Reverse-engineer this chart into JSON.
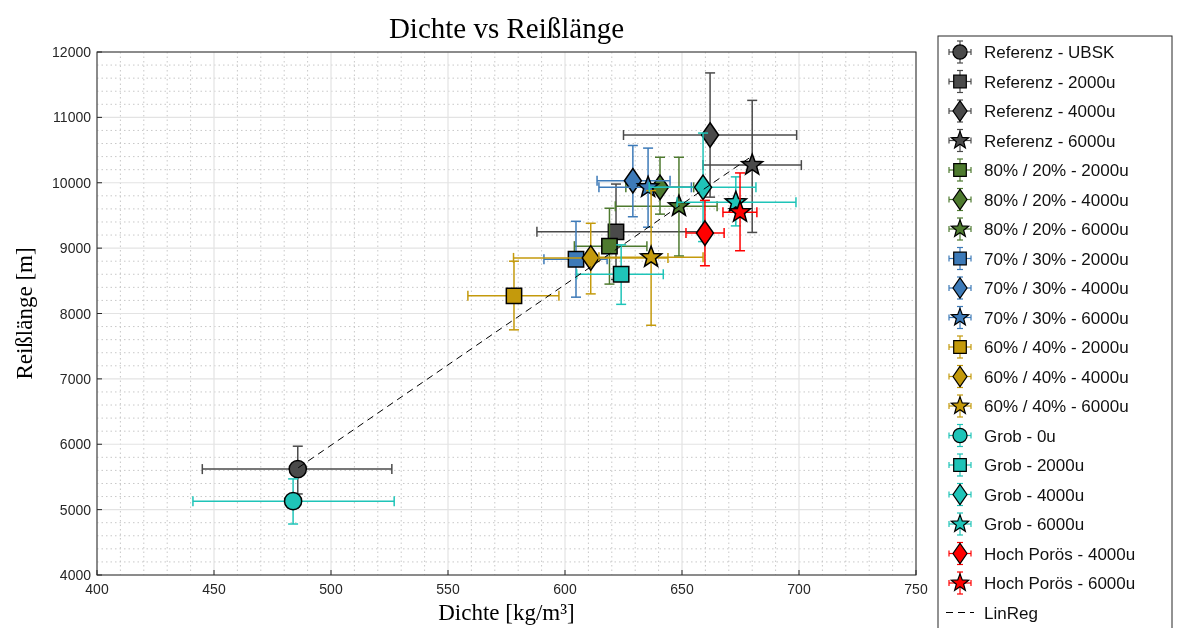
{
  "chart_data": {
    "type": "scatter",
    "title": "Dichte vs Reißlänge",
    "xlabel": "Dichte [kg/m³]",
    "ylabel": "Reißlänge [m]",
    "xlim": [
      400,
      750
    ],
    "xticks": [
      400,
      450,
      500,
      550,
      600,
      650,
      700,
      750
    ],
    "ylim": [
      4000,
      12000
    ],
    "yticks": [
      4000,
      5000,
      6000,
      7000,
      8000,
      9000,
      10000,
      11000,
      12000
    ],
    "grid": true,
    "legend": "right",
    "series": [
      {
        "name": "Referenz - UBSK",
        "color": "#4a4a4a",
        "marker": "circle",
        "x": [
          485.8
        ],
        "values": [
          5620
        ],
        "errors": [
          [
            5240,
            5970
          ]
        ],
        "xerrors": [
          [
            445,
            526
          ]
        ]
      },
      {
        "name": "Referenz - 2000u",
        "color": "#4a4a4a",
        "marker": "square",
        "x": [
          621.8
        ],
        "values": [
          9250
        ],
        "errors": [
          [
            8520,
            9980
          ]
        ],
        "xerrors": [
          [
            588,
            658
          ]
        ]
      },
      {
        "name": "Referenz - 4000u",
        "color": "#4a4a4a",
        "marker": "diamond",
        "x": [
          662
        ],
        "values": [
          10730
        ],
        "errors": [
          [
            9780,
            11680
          ]
        ],
        "xerrors": [
          [
            625,
            699
          ]
        ]
      },
      {
        "name": "Referenz - 6000u",
        "color": "#4a4a4a",
        "marker": "star",
        "x": [
          680
        ],
        "values": [
          10270
        ],
        "errors": [
          [
            9240,
            11260
          ]
        ],
        "xerrors": [
          [
            659,
            701
          ]
        ]
      },
      {
        "name": "80% / 20% - 2000u",
        "color": "#4e7a2f",
        "marker": "square",
        "x": [
          619
        ],
        "values": [
          9030
        ],
        "errors": [
          [
            8450,
            9610
          ]
        ],
        "xerrors": [
          [
            604,
            635
          ]
        ]
      },
      {
        "name": "80% / 20% - 4000u",
        "color": "#4e7a2f",
        "marker": "diamond",
        "x": [
          640.6
        ],
        "values": [
          9930
        ],
        "errors": [
          [
            9520,
            10390
          ]
        ],
        "xerrors": [
          [
            626,
            655
          ]
        ]
      },
      {
        "name": "80% / 20% - 6000u",
        "color": "#4e7a2f",
        "marker": "star",
        "x": [
          648.7
        ],
        "values": [
          9640
        ],
        "errors": [
          [
            8880,
            10390
          ]
        ],
        "xerrors": [
          [
            621.5,
            665
          ]
        ]
      },
      {
        "name": "70% / 30% - 2000u",
        "color": "#3d7ab8",
        "marker": "square",
        "x": [
          604.7
        ],
        "values": [
          8830
        ],
        "errors": [
          [
            8250,
            9410
          ]
        ],
        "xerrors": [
          [
            591,
            618
          ]
        ]
      },
      {
        "name": "70% / 30% - 4000u",
        "color": "#3d7ab8",
        "marker": "diamond",
        "x": [
          629
        ],
        "values": [
          10030
        ],
        "errors": [
          [
            9480,
            10570
          ]
        ],
        "xerrors": [
          [
            613.7,
            644.9
          ]
        ]
      },
      {
        "name": "70% / 30% - 6000u",
        "color": "#3d7ab8",
        "marker": "star",
        "x": [
          635.5
        ],
        "values": [
          9930
        ],
        "errors": [
          [
            9320,
            10530
          ]
        ],
        "xerrors": [
          [
            614.5,
            654
          ]
        ]
      },
      {
        "name": "60% / 40% - 2000u",
        "color": "#c49a0c",
        "marker": "square",
        "x": [
          578.2
        ],
        "values": [
          8270
        ],
        "errors": [
          [
            7750,
            8800
          ]
        ],
        "xerrors": [
          [
            558.5,
            597.4
          ]
        ]
      },
      {
        "name": "60% / 40% - 4000u",
        "color": "#c49a0c",
        "marker": "diamond",
        "x": [
          611
        ],
        "values": [
          8850
        ],
        "errors": [
          [
            8300,
            9380
          ]
        ],
        "xerrors": [
          [
            578,
            644
          ]
        ]
      },
      {
        "name": "60% / 40% - 6000u",
        "color": "#c49a0c",
        "marker": "star",
        "x": [
          636.8
        ],
        "values": [
          8860
        ],
        "errors": [
          [
            7820,
            9880
          ]
        ],
        "xerrors": [
          [
            614.5,
            659
          ]
        ]
      },
      {
        "name": "Grob - 0u",
        "color": "#1fc4b8",
        "marker": "circle",
        "x": [
          483.8
        ],
        "values": [
          5130
        ],
        "errors": [
          [
            4780,
            5470
          ]
        ],
        "xerrors": [
          [
            441,
            527
          ]
        ]
      },
      {
        "name": "Grob - 2000u",
        "color": "#1fc4b8",
        "marker": "square",
        "x": [
          624
        ],
        "values": [
          8600
        ],
        "errors": [
          [
            8140,
            9050
          ]
        ],
        "xerrors": [
          [
            605,
            642
          ]
        ]
      },
      {
        "name": "Grob - 4000u",
        "color": "#1fc4b8",
        "marker": "diamond",
        "x": [
          659
        ],
        "values": [
          9930
        ],
        "errors": [
          [
            9100,
            10760
          ]
        ],
        "xerrors": [
          [
            636,
            681.6
          ]
        ]
      },
      {
        "name": "Grob - 6000u",
        "color": "#1fc4b8",
        "marker": "star",
        "x": [
          673
        ],
        "values": [
          9700
        ],
        "errors": [
          [
            9340,
            10090
          ]
        ],
        "xerrors": [
          [
            647.9,
            698.7
          ]
        ]
      },
      {
        "name": "Hoch Porös - 4000u",
        "color": "#ff0000",
        "marker": "diamond",
        "x": [
          659.8
        ],
        "values": [
          9230
        ],
        "errors": [
          [
            8730,
            9730
          ]
        ],
        "xerrors": [
          [
            651.7,
            668
          ]
        ]
      },
      {
        "name": "Hoch Porös - 6000u",
        "color": "#ff0000",
        "marker": "star",
        "x": [
          674.8
        ],
        "values": [
          9550
        ],
        "errors": [
          [
            8960,
            10150
          ]
        ],
        "xerrors": [
          [
            667.5,
            682
          ]
        ]
      },
      {
        "name": "LinReg",
        "type": "line",
        "color": "#000000",
        "line_style": "dashed",
        "marker": "none",
        "x": [
          486,
          680
        ],
        "values": [
          5640,
          10410
        ]
      }
    ]
  }
}
